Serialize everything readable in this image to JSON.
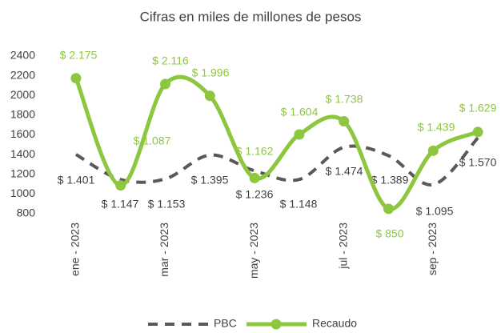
{
  "chart_data": {
    "type": "line",
    "title": "Cifras en miles de millones de pesos",
    "categories": [
      "ene - 2023",
      null,
      "mar - 2023",
      null,
      "may - 2023",
      null,
      "jul - 2023",
      null,
      "sep - 2023",
      null
    ],
    "series": [
      {
        "name": "PBC",
        "color": "#595959",
        "dash": true,
        "values": [
          1401,
          1147,
          1153,
          1395,
          1236,
          1148,
          1474,
          1389,
          1095,
          1570
        ],
        "value_labels": [
          "$ 1.401",
          "$ 1.147",
          "$ 1.153",
          "$ 1.395",
          "$ 1.236",
          "$ 1.148",
          "$ 1.474",
          "$ 1.389",
          "$ 1.095",
          "$ 1.570"
        ]
      },
      {
        "name": "Recaudo",
        "color": "#8dc63f",
        "dash": false,
        "values": [
          2175,
          1087,
          2116,
          1996,
          1162,
          1604,
          1738,
          850,
          1439,
          1629
        ],
        "value_labels": [
          "$ 2.175",
          "$ 1.087",
          "$ 2.116",
          "$ 1.996",
          "$ 1.162",
          "$ 1.604",
          "$ 1.738",
          "$ 850",
          "$ 1.439",
          "$ 1.629"
        ]
      }
    ],
    "ylim": [
      800,
      2400
    ],
    "yticks": [
      800,
      1000,
      1200,
      1400,
      1600,
      1800,
      2000,
      2200,
      2400
    ],
    "smooth": true,
    "legend": "bottom"
  }
}
